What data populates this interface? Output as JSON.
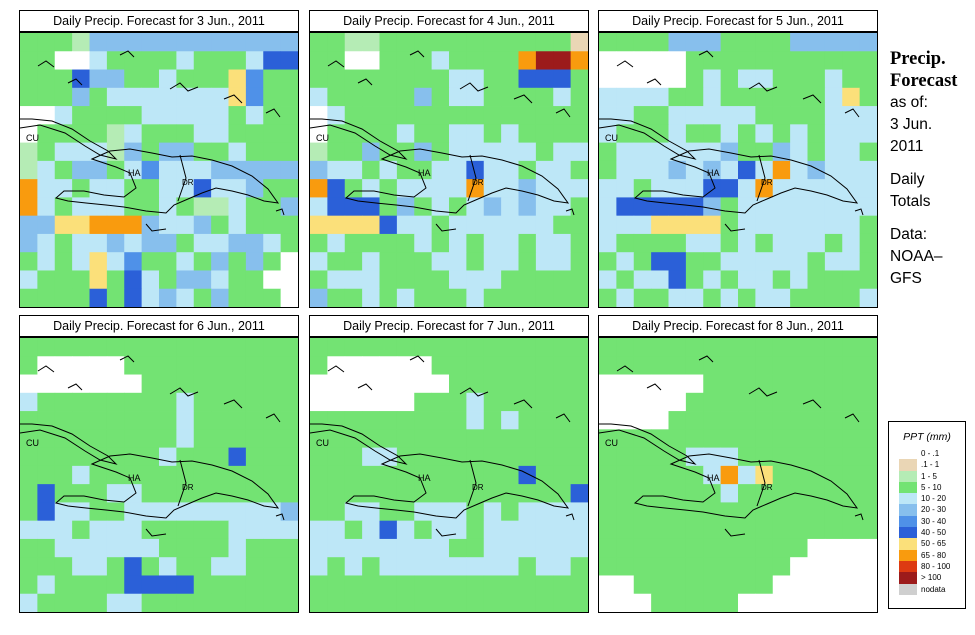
{
  "panels": [
    {
      "title": "Daily Precip. Forecast for  3 Jun., 2011",
      "grid": [
        "3332555555555555",
        "3300433334333477",
        "3337553343338633",
        "3335344444448633",
        "0043333444443433",
        "0333324333443333",
        "2344425355334333",
        "2435534644455555",
        "9443443344744533",
        "9434443343224335",
        "5588999544534333",
        "5434454553445543",
        "3434846334353530",
        "4333837435543300",
        "3333737454353330"
      ]
    },
    {
      "title": "Daily Precip. Forecast for  4 Jun., 2011",
      "grid": [
        "3322333333333331",
        "3300333433339aa9",
        "3333333344337773",
        "4333335344333343",
        "0433333333333333",
        "0333343344343333",
        "2335335344444344",
        "5443433447443443",
        "9734344449445444",
        "4777353434545443",
        "8888744344444433",
        "3433334343443443",
        "4334333443443443",
        "3444333344433333",
        "5334343334333333"
      ]
    },
    {
      "title": "Daily Precip. Forecast for  5 Jun., 2011",
      "grid": [
        "3333555333355555",
        "0000033333333333",
        "0000034344333433",
        "4444334333333483",
        "4433444443333444",
        "4333433434343444",
        "3444444533543443",
        "3444545474945444",
        "4434447749444444",
        "4777775344444444",
        "4448888344444443",
        "4333344343444343",
        "3437733444443443",
        "4344734344343333",
        "3433443434433334"
      ]
    },
    {
      "title": "Daily Precip. Forecast for  6 Jun., 2011",
      "grid": [
        "3333333333333333",
        "3000003333333333",
        "0000000333333333",
        "4333333334333333",
        "3333333334333333",
        "3333333334333333",
        "3333333343337333",
        "3334333333333333",
        "3733344333333333",
        "3744334444444445",
        "4443444333334444",
        "3344444433334333",
        "3334437343344333",
        "3433337777333333",
        "4333344333333333"
      ]
    },
    {
      "title": "Daily Precip. Forecast for  7 Jun., 2011",
      "grid": [
        "3333333333333333",
        "3000000333333333",
        "0000000033333333",
        "0000003334333333",
        "3333333334343333",
        "3333333333333333",
        "3334433333333333",
        "3333333333337333",
        "3333333333333337",
        "3344334443434444",
        "4434743443444444",
        "4444444433444444",
        "4343444444443443",
        "3333333333333333",
        "3333333333333333"
      ]
    },
    {
      "title": "Daily Precip. Forecast for  8 Jun., 2011",
      "grid": [
        "3333333333333333",
        "3333333333333333",
        "0000003333333333",
        "0000033333333333",
        "0000333333333333",
        "3333333333333333",
        "3333344433333333",
        "3333334948333333",
        "3333333433333333",
        "3333333333333333",
        "3333333333333333",
        "3333333333330000",
        "3333333333300000",
        "0033333333000000",
        "0003333300000000"
      ]
    }
  ],
  "map_labels": {
    "cu": "CU",
    "ha": "HA",
    "dr": "DR"
  },
  "side": {
    "title_line1": "Precip.",
    "title_line2": "Forecast",
    "asof": "as of:",
    "date1": "3 Jun.",
    "date2": "2011",
    "daily1": "Daily",
    "daily2": "Totals",
    "data1": "Data:",
    "data2": "NOAA–",
    "data3": "GFS"
  },
  "legend": {
    "title": "PPT (mm)",
    "items": [
      {
        "label": "0 - .1",
        "color": "#ffffff"
      },
      {
        "label": ".1 - 1",
        "color": "#ead6b5"
      },
      {
        "label": "1 - 5",
        "color": "#b5ecb5"
      },
      {
        "label": "5 - 10",
        "color": "#73e373"
      },
      {
        "label": "10 - 20",
        "color": "#bde7f7"
      },
      {
        "label": "20 - 30",
        "color": "#87bfed"
      },
      {
        "label": "30 - 40",
        "color": "#4f91e8"
      },
      {
        "label": "40 - 50",
        "color": "#2b60d8"
      },
      {
        "label": "50 - 65",
        "color": "#fbe07a"
      },
      {
        "label": "65 - 80",
        "color": "#f99b0e"
      },
      {
        "label": "80 - 100",
        "color": "#dd3a12"
      },
      {
        "label": "> 100",
        "color": "#9c1b1b"
      },
      {
        "label": "nodata",
        "color": "#cfcfcf"
      }
    ]
  }
}
